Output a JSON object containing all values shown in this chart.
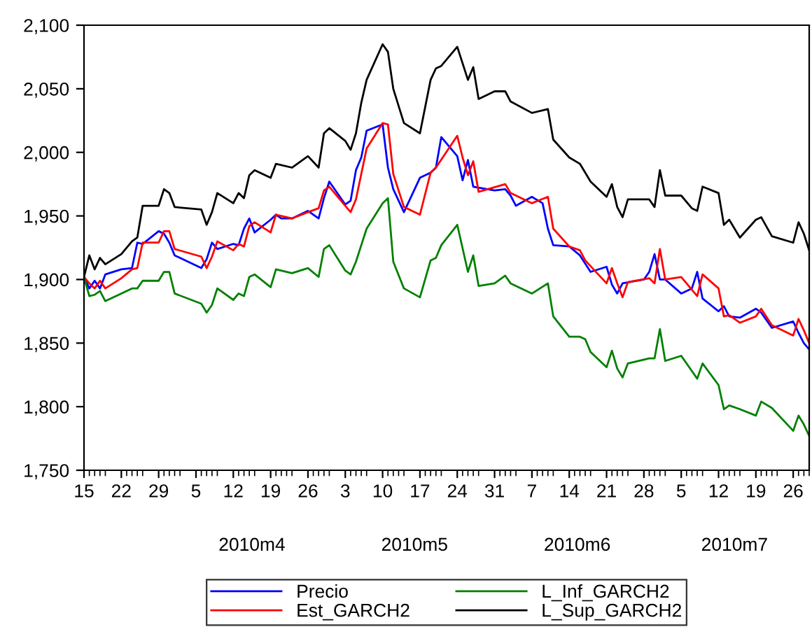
{
  "chart_data": {
    "type": "line",
    "ylim": [
      1750,
      2100
    ],
    "yticks": [
      {
        "value": 1750,
        "label": "1,750"
      },
      {
        "value": 1800,
        "label": "1,800"
      },
      {
        "value": 1850,
        "label": "1,850"
      },
      {
        "value": 1900,
        "label": "1,900"
      },
      {
        "value": 1950,
        "label": "1,950"
      },
      {
        "value": 2000,
        "label": "2,000"
      },
      {
        "value": 2050,
        "label": "2,050"
      },
      {
        "value": 2100,
        "label": "2,100"
      }
    ],
    "xlim": [
      "2010-03-15",
      "2010-07-29"
    ],
    "xticks": [
      {
        "value": "2010-03-15",
        "label": "15"
      },
      {
        "value": "2010-03-22",
        "label": "22"
      },
      {
        "value": "2010-03-29",
        "label": "29"
      },
      {
        "value": "2010-04-05",
        "label": "5"
      },
      {
        "value": "2010-04-12",
        "label": "12"
      },
      {
        "value": "2010-04-19",
        "label": "19"
      },
      {
        "value": "2010-04-26",
        "label": "26"
      },
      {
        "value": "2010-05-03",
        "label": "3"
      },
      {
        "value": "2010-05-10",
        "label": "10"
      },
      {
        "value": "2010-05-17",
        "label": "17"
      },
      {
        "value": "2010-05-24",
        "label": "24"
      },
      {
        "value": "2010-05-31",
        "label": "31"
      },
      {
        "value": "2010-06-07",
        "label": "7"
      },
      {
        "value": "2010-06-14",
        "label": "14"
      },
      {
        "value": "2010-06-21",
        "label": "21"
      },
      {
        "value": "2010-06-28",
        "label": "28"
      },
      {
        "value": "2010-07-05",
        "label": "5"
      },
      {
        "value": "2010-07-12",
        "label": "12"
      },
      {
        "value": "2010-07-19",
        "label": "19"
      },
      {
        "value": "2010-07-26",
        "label": "26"
      }
    ],
    "annotations": [
      "2010m4",
      "2010m5",
      "2010m6",
      "2010m7"
    ],
    "grid": false,
    "legend": "bottom",
    "marker": "none",
    "line_style": "solid",
    "series": [
      {
        "name": "Precio",
        "color": "#0000ff",
        "x": [
          "2010-03-15",
          "2010-03-16",
          "2010-03-17",
          "2010-03-18",
          "2010-03-19",
          "2010-03-22",
          "2010-03-24",
          "2010-03-25",
          "2010-03-26",
          "2010-03-29",
          "2010-03-30",
          "2010-03-31",
          "2010-04-01",
          "2010-04-06",
          "2010-04-07",
          "2010-04-08",
          "2010-04-09",
          "2010-04-12",
          "2010-04-13",
          "2010-04-14",
          "2010-04-15",
          "2010-04-16",
          "2010-04-19",
          "2010-04-20",
          "2010-04-21",
          "2010-04-23",
          "2010-04-26",
          "2010-04-28",
          "2010-04-29",
          "2010-04-30",
          "2010-05-03",
          "2010-05-04",
          "2010-05-05",
          "2010-05-06",
          "2010-05-07",
          "2010-05-10",
          "2010-05-11",
          "2010-05-12",
          "2010-05-14",
          "2010-05-17",
          "2010-05-19",
          "2010-05-20",
          "2010-05-21",
          "2010-05-24",
          "2010-05-25",
          "2010-05-26",
          "2010-05-27",
          "2010-05-31",
          "2010-06-02",
          "2010-06-03",
          "2010-06-04",
          "2010-06-07",
          "2010-06-09",
          "2010-06-10",
          "2010-06-11",
          "2010-06-14",
          "2010-06-16",
          "2010-06-18",
          "2010-06-21",
          "2010-06-22",
          "2010-06-23",
          "2010-06-24",
          "2010-06-28",
          "2010-06-29",
          "2010-06-30",
          "2010-07-01",
          "2010-07-02",
          "2010-07-05",
          "2010-07-07",
          "2010-07-08",
          "2010-07-09",
          "2010-07-12",
          "2010-07-13",
          "2010-07-14",
          "2010-07-16",
          "2010-07-19",
          "2010-07-20",
          "2010-07-22",
          "2010-07-26",
          "2010-07-27",
          "2010-07-28",
          "2010-07-29"
        ],
        "values": [
          1902,
          1893,
          1899,
          1893,
          1904,
          1908,
          1909,
          1929,
          1928,
          1938,
          1936,
          1929,
          1919,
          1909,
          1916,
          1929,
          1924,
          1928,
          1927,
          1940,
          1948,
          1937,
          1947,
          1951,
          1948,
          1948,
          1954,
          1948,
          1964,
          1977,
          1959,
          1962,
          1986,
          1996,
          2017,
          2022,
          1988,
          1971,
          1953,
          1980,
          1984,
          1988,
          2012,
          1997,
          1978,
          1994,
          1973,
          1970,
          1971,
          1966,
          1958,
          1965,
          1960,
          1940,
          1927,
          1926,
          1919,
          1906,
          1910,
          1896,
          1889,
          1897,
          1900,
          1906,
          1920,
          1900,
          1900,
          1889,
          1893,
          1906,
          1885,
          1875,
          1879,
          1871,
          1870,
          1877,
          1874,
          1862,
          1867,
          1858,
          1850,
          1845
        ]
      },
      {
        "name": "Est_GARCH2",
        "color": "#ff0000",
        "x": [
          "2010-03-15",
          "2010-03-16",
          "2010-03-17",
          "2010-03-18",
          "2010-03-19",
          "2010-03-22",
          "2010-03-24",
          "2010-03-25",
          "2010-03-26",
          "2010-03-29",
          "2010-03-30",
          "2010-03-31",
          "2010-04-01",
          "2010-04-06",
          "2010-04-07",
          "2010-04-08",
          "2010-04-09",
          "2010-04-12",
          "2010-04-13",
          "2010-04-14",
          "2010-04-15",
          "2010-04-16",
          "2010-04-19",
          "2010-04-20",
          "2010-04-23",
          "2010-04-26",
          "2010-04-28",
          "2010-04-29",
          "2010-04-30",
          "2010-05-03",
          "2010-05-04",
          "2010-05-05",
          "2010-05-06",
          "2010-05-07",
          "2010-05-10",
          "2010-05-11",
          "2010-05-12",
          "2010-05-14",
          "2010-05-17",
          "2010-05-19",
          "2010-05-20",
          "2010-05-24",
          "2010-05-25",
          "2010-05-26",
          "2010-05-27",
          "2010-05-28",
          "2010-06-02",
          "2010-06-03",
          "2010-06-07",
          "2010-06-10",
          "2010-06-11",
          "2010-06-14",
          "2010-06-16",
          "2010-06-17",
          "2010-06-21",
          "2010-06-22",
          "2010-06-23",
          "2010-06-24",
          "2010-06-25",
          "2010-06-29",
          "2010-06-30",
          "2010-07-01",
          "2010-07-02",
          "2010-07-05",
          "2010-07-08",
          "2010-07-09",
          "2010-07-12",
          "2010-07-13",
          "2010-07-14",
          "2010-07-16",
          "2010-07-19",
          "2010-07-20",
          "2010-07-22",
          "2010-07-26",
          "2010-07-27",
          "2010-07-28",
          "2010-07-29"
        ],
        "values": [
          1902,
          1897,
          1893,
          1899,
          1893,
          1901,
          1908,
          1909,
          1929,
          1929,
          1938,
          1938,
          1924,
          1918,
          1909,
          1918,
          1930,
          1923,
          1928,
          1926,
          1942,
          1945,
          1937,
          1951,
          1948,
          1953,
          1956,
          1970,
          1973,
          1958,
          1953,
          1963,
          1983,
          2003,
          2023,
          2022,
          1983,
          1957,
          1951,
          1984,
          1988,
          2013,
          1996,
          1982,
          1993,
          1969,
          1975,
          1968,
          1960,
          1965,
          1940,
          1926,
          1923,
          1915,
          1897,
          1909,
          1897,
          1886,
          1898,
          1901,
          1897,
          1924,
          1900,
          1902,
          1887,
          1904,
          1893,
          1871,
          1872,
          1866,
          1871,
          1877,
          1864,
          1856,
          1869,
          1860,
          1850
        ]
      },
      {
        "name": "L_Inf_GARCH2",
        "color": "#008000",
        "x": [
          "2010-03-15",
          "2010-03-16",
          "2010-03-17",
          "2010-03-18",
          "2010-03-19",
          "2010-03-22",
          "2010-03-24",
          "2010-03-25",
          "2010-03-26",
          "2010-03-29",
          "2010-03-30",
          "2010-03-31",
          "2010-04-01",
          "2010-04-06",
          "2010-04-07",
          "2010-04-08",
          "2010-04-09",
          "2010-04-12",
          "2010-04-13",
          "2010-04-14",
          "2010-04-15",
          "2010-04-16",
          "2010-04-19",
          "2010-04-20",
          "2010-04-23",
          "2010-04-26",
          "2010-04-28",
          "2010-04-29",
          "2010-04-30",
          "2010-05-03",
          "2010-05-04",
          "2010-05-05",
          "2010-05-06",
          "2010-05-07",
          "2010-05-10",
          "2010-05-11",
          "2010-05-12",
          "2010-05-14",
          "2010-05-17",
          "2010-05-19",
          "2010-05-20",
          "2010-05-21",
          "2010-05-24",
          "2010-05-26",
          "2010-05-27",
          "2010-05-28",
          "2010-05-31",
          "2010-06-02",
          "2010-06-03",
          "2010-06-07",
          "2010-06-10",
          "2010-06-11",
          "2010-06-14",
          "2010-06-16",
          "2010-06-17",
          "2010-06-18",
          "2010-06-21",
          "2010-06-22",
          "2010-06-23",
          "2010-06-24",
          "2010-06-25",
          "2010-06-29",
          "2010-06-30",
          "2010-07-01",
          "2010-07-02",
          "2010-07-05",
          "2010-07-07",
          "2010-07-08",
          "2010-07-09",
          "2010-07-12",
          "2010-07-13",
          "2010-07-14",
          "2010-07-16",
          "2010-07-19",
          "2010-07-20",
          "2010-07-22",
          "2010-07-26",
          "2010-07-27",
          "2010-07-28",
          "2010-07-29"
        ],
        "values": [
          1902,
          1887,
          1888,
          1891,
          1883,
          1889,
          1893,
          1893,
          1899,
          1899,
          1906,
          1906,
          1889,
          1881,
          1874,
          1880,
          1893,
          1884,
          1889,
          1887,
          1902,
          1904,
          1894,
          1908,
          1905,
          1909,
          1902,
          1924,
          1927,
          1907,
          1904,
          1914,
          1927,
          1940,
          1960,
          1964,
          1914,
          1893,
          1886,
          1915,
          1917,
          1927,
          1943,
          1906,
          1919,
          1895,
          1897,
          1903,
          1897,
          1889,
          1897,
          1871,
          1855,
          1855,
          1853,
          1843,
          1831,
          1844,
          1830,
          1823,
          1834,
          1838,
          1838,
          1861,
          1836,
          1840,
          1828,
          1822,
          1834,
          1817,
          1798,
          1801,
          1798,
          1793,
          1804,
          1799,
          1781,
          1793,
          1786,
          1777
        ]
      },
      {
        "name": "L_Sup_GARCH2",
        "color": "#000000",
        "x": [
          "2010-03-15",
          "2010-03-16",
          "2010-03-17",
          "2010-03-18",
          "2010-03-19",
          "2010-03-22",
          "2010-03-24",
          "2010-03-25",
          "2010-03-26",
          "2010-03-29",
          "2010-03-30",
          "2010-03-31",
          "2010-04-01",
          "2010-04-06",
          "2010-04-07",
          "2010-04-08",
          "2010-04-09",
          "2010-04-12",
          "2010-04-13",
          "2010-04-14",
          "2010-04-15",
          "2010-04-16",
          "2010-04-19",
          "2010-04-20",
          "2010-04-23",
          "2010-04-26",
          "2010-04-28",
          "2010-04-29",
          "2010-04-30",
          "2010-05-03",
          "2010-05-04",
          "2010-05-05",
          "2010-05-06",
          "2010-05-07",
          "2010-05-10",
          "2010-05-11",
          "2010-05-12",
          "2010-05-14",
          "2010-05-17",
          "2010-05-19",
          "2010-05-20",
          "2010-05-21",
          "2010-05-24",
          "2010-05-26",
          "2010-05-27",
          "2010-05-28",
          "2010-05-31",
          "2010-06-02",
          "2010-06-03",
          "2010-06-07",
          "2010-06-10",
          "2010-06-11",
          "2010-06-14",
          "2010-06-16",
          "2010-06-18",
          "2010-06-21",
          "2010-06-22",
          "2010-06-23",
          "2010-06-24",
          "2010-06-25",
          "2010-06-29",
          "2010-06-30",
          "2010-07-01",
          "2010-07-02",
          "2010-07-05",
          "2010-07-07",
          "2010-07-08",
          "2010-07-09",
          "2010-07-12",
          "2010-07-13",
          "2010-07-14",
          "2010-07-16",
          "2010-07-19",
          "2010-07-20",
          "2010-07-22",
          "2010-07-26",
          "2010-07-27",
          "2010-07-28",
          "2010-07-29"
        ],
        "values": [
          1902,
          1919,
          1908,
          1917,
          1912,
          1920,
          1930,
          1933,
          1958,
          1958,
          1971,
          1968,
          1957,
          1955,
          1943,
          1953,
          1968,
          1960,
          1968,
          1964,
          1982,
          1986,
          1980,
          1991,
          1988,
          1997,
          1988,
          2015,
          2019,
          2009,
          2002,
          2015,
          2039,
          2057,
          2085,
          2079,
          2050,
          2023,
          2015,
          2057,
          2066,
          2068,
          2083,
          2057,
          2067,
          2042,
          2048,
          2048,
          2040,
          2031,
          2034,
          2010,
          1996,
          1991,
          1977,
          1965,
          1975,
          1957,
          1949,
          1963,
          1963,
          1957,
          1986,
          1966,
          1966,
          1956,
          1954,
          1973,
          1968,
          1943,
          1947,
          1933,
          1947,
          1949,
          1934,
          1929,
          1945,
          1936,
          1923
        ]
      }
    ]
  }
}
